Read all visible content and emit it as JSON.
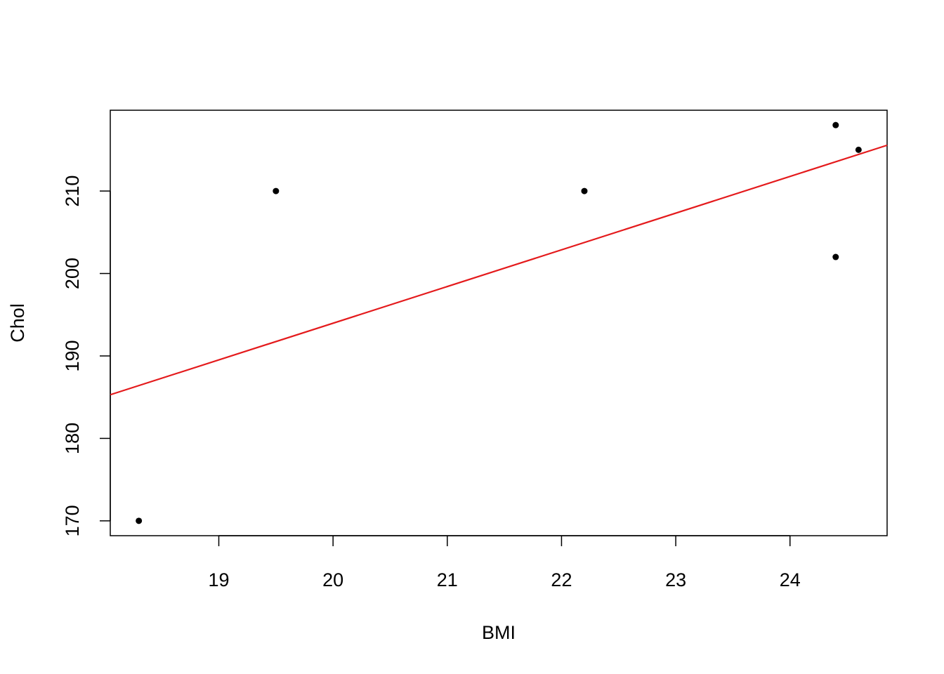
{
  "chart_data": {
    "type": "scatter",
    "title": "",
    "xlabel": "BMI",
    "ylabel": "Chol",
    "xlim": [
      18.05,
      24.85
    ],
    "ylim": [
      168.2,
      219.8
    ],
    "x_ticks": [
      19,
      20,
      21,
      22,
      23,
      24
    ],
    "y_ticks": [
      170,
      180,
      190,
      200,
      210
    ],
    "grid": false,
    "series": [
      {
        "points": [
          {
            "x": 18.3,
            "y": 170
          },
          {
            "x": 19.5,
            "y": 210
          },
          {
            "x": 22.2,
            "y": 210
          },
          {
            "x": 24.4,
            "y": 218
          },
          {
            "x": 24.4,
            "y": 202
          },
          {
            "x": 24.6,
            "y": 215
          }
        ],
        "color": "#000000"
      }
    ],
    "regression_line": {
      "color": "#e41a1c",
      "intercept": 104.97,
      "slope": 4.45
    }
  }
}
